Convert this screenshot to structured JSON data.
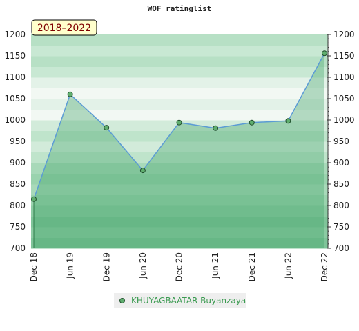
{
  "chart_data": {
    "type": "line",
    "title": "WOF ratinglist",
    "subtitle": "2018–2022",
    "categories": [
      "Dec 18",
      "Jun 19",
      "Dec 19",
      "Jun 20",
      "Dec 20",
      "Jun 21",
      "Dec 21",
      "Jun 22",
      "Dec 22"
    ],
    "series": [
      {
        "name": "KHUYAGBAATAR Buyanzaya",
        "color": "#5b9bd5",
        "marker_color": "#5fae6e",
        "values": [
          815,
          1060,
          982,
          882,
          994,
          981,
          994,
          998,
          1156
        ]
      }
    ],
    "ylim": [
      700,
      1200
    ],
    "yticks": [
      700,
      750,
      800,
      850,
      900,
      950,
      1000,
      1050,
      1100,
      1150,
      1200
    ],
    "area": true
  }
}
